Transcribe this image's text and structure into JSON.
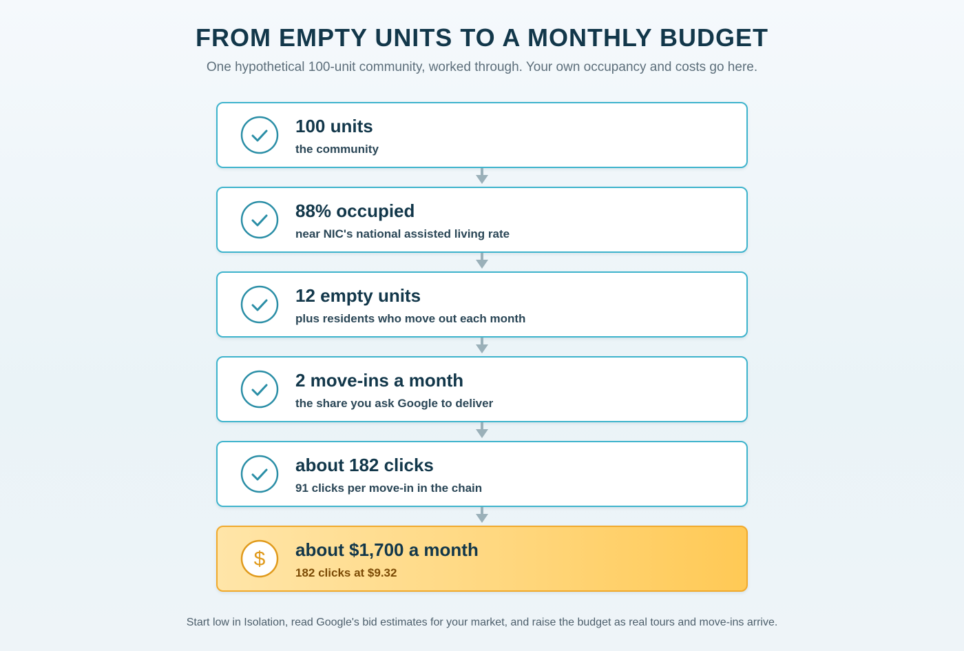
{
  "header": {
    "title": "FROM EMPTY UNITS TO A MONTHLY BUDGET",
    "subtitle": "One hypothetical 100-unit community, worked through. Your own occupancy and costs go here."
  },
  "colors": {
    "step_border": "#3db3cc",
    "icon_teal": "#2a8ea6",
    "final_border": "#f0a92c",
    "final_icon": "#e09a1c",
    "arrow": "#9ab0b9"
  },
  "steps": [
    {
      "title": "100 units",
      "subtitle": "the community",
      "icon": "check-circle-icon"
    },
    {
      "title": "88% occupied",
      "subtitle": "near NIC's national assisted living rate",
      "icon": "check-circle-icon"
    },
    {
      "title": "12 empty units",
      "subtitle": "plus residents who move out each month",
      "icon": "check-circle-icon"
    },
    {
      "title": "2 move-ins a month",
      "subtitle": "the share you ask Google to deliver",
      "icon": "check-circle-icon"
    },
    {
      "title": "about 182 clicks",
      "subtitle": "91 clicks per move-in in the chain",
      "icon": "check-circle-icon"
    },
    {
      "title": "about $1,700 a month",
      "subtitle": "182 clicks at $9.32",
      "icon": "dollar-circle-icon"
    }
  ],
  "footer": {
    "note": "Start low in Isolation, read Google's bid estimates for your market, and raise the budget as real tours and move-ins arrive."
  }
}
